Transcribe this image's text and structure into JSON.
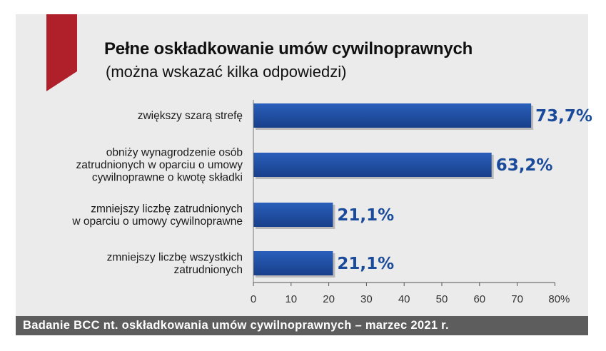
{
  "colors": {
    "bar": "#1d4fa6",
    "value_text": "#1a4b9b",
    "accent": "#b0202a",
    "footer_bg": "#5d5d5d",
    "panel_bg": "#ebebeb"
  },
  "chart_data": {
    "type": "bar",
    "orientation": "horizontal",
    "title": "Pełne oskładkowanie umów cywilnoprawnych",
    "subtitle": "(można wskazać kilka odpowiedzi)",
    "categories": [
      [
        "zwiększy szarą strefę"
      ],
      [
        "obniży wynagrodzenie osób",
        "zatrudnionych w oparciu o umowy",
        "cywilnoprawne o kwotę składki"
      ],
      [
        "zmniejszy liczbę zatrudnionych",
        "w oparciu o umowy cywilnoprawne"
      ],
      [
        "zmniejszy liczbę wszystkich",
        "zatrudnionych"
      ]
    ],
    "values": [
      73.7,
      63.2,
      21.1,
      21.1
    ],
    "value_labels": [
      "73,7%",
      "63,2%",
      "21,1%",
      "21,1%"
    ],
    "xlim": [
      0,
      80
    ],
    "xticks": [
      "0",
      "10",
      "20",
      "30",
      "40",
      "50",
      "60",
      "70",
      "80%"
    ],
    "grid": false,
    "source": "Badanie BCC nt. oskładkowania umów cywilnoprawnych – marzec 2021 r."
  }
}
